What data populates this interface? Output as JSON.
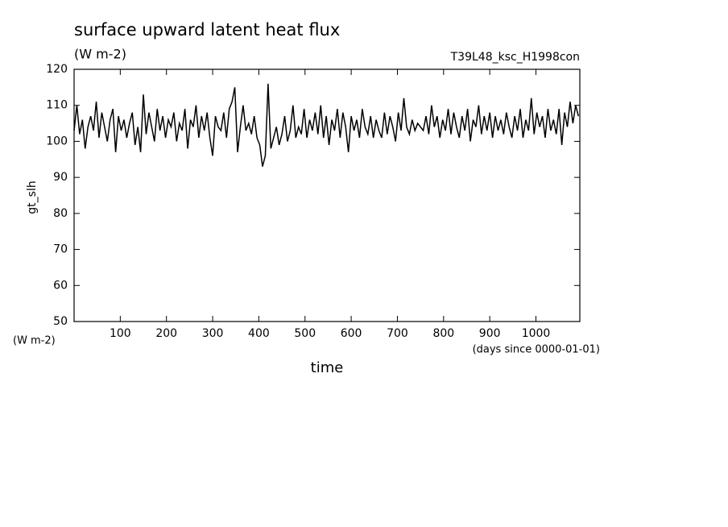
{
  "chart_data": {
    "type": "line",
    "title": "surface upward latent heat flux",
    "subtitle": "(W m-2)",
    "annotation": "T39L48_ksc_H1998con",
    "y_label": "gt_slh",
    "y_unit": "(W m-2)",
    "x_label": "time",
    "x_unit": "(days since 0000-01-01)",
    "xlim": [
      0,
      1095
    ],
    "ylim": [
      50,
      120
    ],
    "xticks": [
      100,
      200,
      300,
      400,
      500,
      600,
      700,
      800,
      900,
      1000
    ],
    "yticks": [
      50,
      60,
      70,
      80,
      90,
      100,
      110,
      120
    ],
    "x": [
      0,
      6,
      12,
      18,
      24,
      30,
      36,
      42,
      48,
      54,
      60,
      66,
      72,
      78,
      84,
      90,
      96,
      102,
      108,
      114,
      120,
      126,
      132,
      138,
      144,
      150,
      156,
      162,
      168,
      174,
      180,
      186,
      192,
      198,
      204,
      210,
      216,
      222,
      228,
      234,
      240,
      246,
      252,
      258,
      264,
      270,
      276,
      282,
      288,
      294,
      300,
      306,
      312,
      318,
      324,
      330,
      336,
      342,
      348,
      354,
      360,
      366,
      372,
      378,
      384,
      390,
      396,
      402,
      408,
      414,
      420,
      426,
      432,
      438,
      444,
      450,
      456,
      462,
      468,
      474,
      480,
      486,
      492,
      498,
      504,
      510,
      516,
      522,
      528,
      534,
      540,
      546,
      552,
      558,
      564,
      570,
      576,
      582,
      588,
      594,
      600,
      606,
      612,
      618,
      624,
      630,
      636,
      642,
      648,
      654,
      660,
      666,
      672,
      678,
      684,
      690,
      696,
      702,
      708,
      714,
      720,
      726,
      732,
      738,
      744,
      750,
      756,
      762,
      768,
      774,
      780,
      786,
      792,
      798,
      804,
      810,
      816,
      822,
      828,
      834,
      840,
      846,
      852,
      858,
      864,
      870,
      876,
      882,
      888,
      894,
      900,
      906,
      912,
      918,
      924,
      930,
      936,
      942,
      948,
      954,
      960,
      966,
      972,
      978,
      984,
      990,
      996,
      1002,
      1008,
      1014,
      1020,
      1026,
      1032,
      1038,
      1044,
      1050,
      1056,
      1062,
      1068,
      1074,
      1080,
      1086,
      1092
    ],
    "series": [
      {
        "color": "#000000",
        "values": [
          103,
          110,
          102,
          106,
          98,
          104,
          107,
          103,
          111,
          101,
          108,
          104,
          100,
          106,
          109,
          97,
          107,
          103,
          106,
          101,
          105,
          108,
          99,
          104,
          97,
          113,
          102,
          108,
          104,
          100,
          109,
          103,
          107,
          101,
          106,
          104,
          108,
          100,
          105,
          103,
          109,
          98,
          106,
          104,
          110,
          101,
          107,
          103,
          108,
          101,
          96,
          107,
          104,
          103,
          108,
          101,
          109,
          111,
          115,
          97,
          104,
          110,
          103,
          105,
          102,
          107,
          101,
          99,
          93,
          96,
          116,
          98,
          101,
          104,
          99,
          102,
          107,
          100,
          103,
          110,
          101,
          104,
          102,
          109,
          101,
          106,
          103,
          108,
          102,
          110,
          101,
          107,
          99,
          106,
          103,
          109,
          101,
          108,
          104,
          97,
          107,
          103,
          106,
          101,
          109,
          104,
          102,
          107,
          101,
          106,
          103,
          101,
          108,
          102,
          107,
          104,
          100,
          108,
          103,
          112,
          104,
          102,
          106,
          103,
          105,
          104,
          103,
          107,
          102,
          110,
          104,
          107,
          101,
          106,
          103,
          109,
          102,
          108,
          104,
          101,
          107,
          103,
          109,
          100,
          106,
          104,
          110,
          102,
          107,
          103,
          108,
          101,
          107,
          103,
          106,
          102,
          108,
          104,
          101,
          107,
          103,
          109,
          101,
          106,
          103,
          112,
          102,
          108,
          104,
          107,
          101,
          109,
          103,
          106,
          102,
          109,
          99,
          108,
          104,
          111,
          105,
          110,
          107
        ]
      }
    ]
  }
}
